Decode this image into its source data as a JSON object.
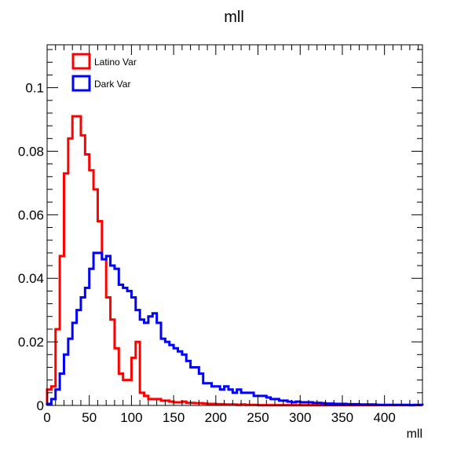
{
  "chart_data": {
    "type": "line",
    "title": "mll",
    "xlabel": "mll",
    "ylabel": "",
    "xlim": [
      0,
      445
    ],
    "ylim": [
      0,
      0.1135
    ],
    "grid": false,
    "legend_position": "top-left",
    "x_ticks": [
      "0",
      "50",
      "100",
      "150",
      "200",
      "250",
      "300",
      "350",
      "400"
    ],
    "y_ticks": [
      "0",
      "0.02",
      "0.04",
      "0.06",
      "0.08",
      "0.1"
    ],
    "bin_width": 5,
    "series": [
      {
        "name": "Latino Var",
        "color": "#ff0000",
        "values": [
          0.005,
          0.006,
          0.024,
          0.047,
          0.073,
          0.084,
          0.091,
          0.091,
          0.085,
          0.079,
          0.074,
          0.068,
          0.058,
          0.046,
          0.034,
          0.027,
          0.018,
          0.01,
          0.008,
          0.008,
          0.015,
          0.02,
          0.004,
          0.003,
          0.002,
          0.002,
          0.002,
          0.0015,
          0.0015,
          0.0012,
          0.001,
          0.001,
          0.0012,
          0.0008,
          0.0008,
          0.0007,
          0.0007,
          0.0006,
          0.0005,
          0.0005,
          0.0004,
          0.0004,
          0.0003,
          0.0003,
          0.0003,
          0.0002,
          0.0003,
          0.0002,
          0.0002,
          0.0002,
          0.0001,
          0.0001,
          0.0001,
          0.0001,
          0.0001,
          0.0001,
          0.0001,
          0.0001,
          0.0001,
          0.0001,
          0.0001,
          0.0001,
          0.0001,
          0.0001,
          0.0001,
          0.0001,
          0.0001,
          0.0001,
          0.0001,
          0.0001,
          0.0001,
          0.0001,
          0.0001,
          0.0001,
          0.0001,
          0.0001,
          0.0001,
          0.0001,
          0.0001,
          0.0001,
          0.0001,
          0.0001,
          0.0001,
          0.0001,
          0.0001,
          0.0001,
          0.0001,
          0.0001,
          0.0001
        ]
      },
      {
        "name": "Dark Var",
        "color": "#0000ff",
        "values": [
          0.0005,
          0.002,
          0.005,
          0.01,
          0.016,
          0.021,
          0.026,
          0.03,
          0.034,
          0.037,
          0.043,
          0.048,
          0.048,
          0.046,
          0.047,
          0.044,
          0.043,
          0.038,
          0.037,
          0.036,
          0.034,
          0.03,
          0.027,
          0.026,
          0.028,
          0.029,
          0.026,
          0.021,
          0.02,
          0.019,
          0.018,
          0.017,
          0.016,
          0.014,
          0.012,
          0.012,
          0.01,
          0.007,
          0.007,
          0.006,
          0.006,
          0.005,
          0.006,
          0.005,
          0.004,
          0.005,
          0.004,
          0.004,
          0.004,
          0.003,
          0.003,
          0.003,
          0.0025,
          0.002,
          0.002,
          0.0015,
          0.0015,
          0.0012,
          0.001,
          0.0012,
          0.001,
          0.001,
          0.001,
          0.0008,
          0.0008,
          0.0007,
          0.0006,
          0.0006,
          0.0005,
          0.0005,
          0.0005,
          0.0004,
          0.0004,
          0.0004,
          0.0003,
          0.0003,
          0.0003,
          0.0003,
          0.0002,
          0.0002,
          0.0002,
          0.0002,
          0.0002,
          0.0002,
          0.0002,
          0.0002,
          0.0001,
          0.0002,
          0.0002
        ]
      }
    ]
  }
}
